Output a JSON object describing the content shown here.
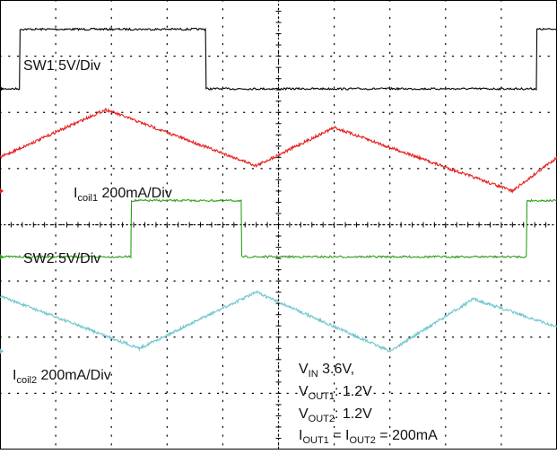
{
  "chart_data": {
    "type": "line",
    "title": "",
    "grid": true,
    "grid_divisions": {
      "x": 10,
      "y": 8
    },
    "x_range_div": [
      0,
      10
    ],
    "y_range_div": [
      0,
      8
    ],
    "series": [
      {
        "label": "SW1 5V/Div",
        "color": "#000000",
        "trace_shape": "square wave",
        "x": [
          0.0,
          0.35,
          0.36,
          3.69,
          3.7,
          9.63,
          9.64
        ],
        "y": [
          6.42,
          6.42,
          7.48,
          7.48,
          6.42,
          6.42,
          7.48
        ]
      },
      {
        "label": "SW2 5V/Div",
        "color": "#2e9e1a",
        "trace_shape": "square wave",
        "x": [
          0.0,
          2.35,
          2.36,
          4.33,
          4.34,
          9.45,
          9.46
        ],
        "y": [
          3.43,
          3.43,
          4.43,
          4.43,
          3.43,
          3.43,
          4.43
        ]
      },
      {
        "label_main": "I",
        "label_sub": "coil1",
        "label_rest": " 200mA/Div",
        "color": "#e32121",
        "trace_shape": "triangle wave",
        "x": [
          0.0,
          1.9,
          4.6,
          6.0,
          9.2,
          10.0
        ],
        "y": [
          5.2,
          6.05,
          5.05,
          5.73,
          4.6,
          5.2
        ]
      },
      {
        "label_main": "I",
        "label_sub": "coil2",
        "label_rest": " 200mA/Div",
        "color": "#70c6cc",
        "trace_shape": "triangle wave",
        "x": [
          0.0,
          2.5,
          4.6,
          7.0,
          8.5,
          10.0
        ],
        "y": [
          2.73,
          1.8,
          2.8,
          1.75,
          2.68,
          2.18
        ]
      }
    ],
    "annotations": [
      {
        "main": "V",
        "sub": "IN",
        "rest": " 3.6V,"
      },
      {
        "main": "V",
        "sub": "OUT1",
        "rest": ": 1.2V"
      },
      {
        "main": "V",
        "sub": "OUT2",
        "rest": ": 1.2V"
      },
      {
        "main": "I",
        "sub": "OUT1",
        "rest": " = I",
        "sub2": "OUT2",
        "rest2": " = 200mA"
      }
    ]
  }
}
